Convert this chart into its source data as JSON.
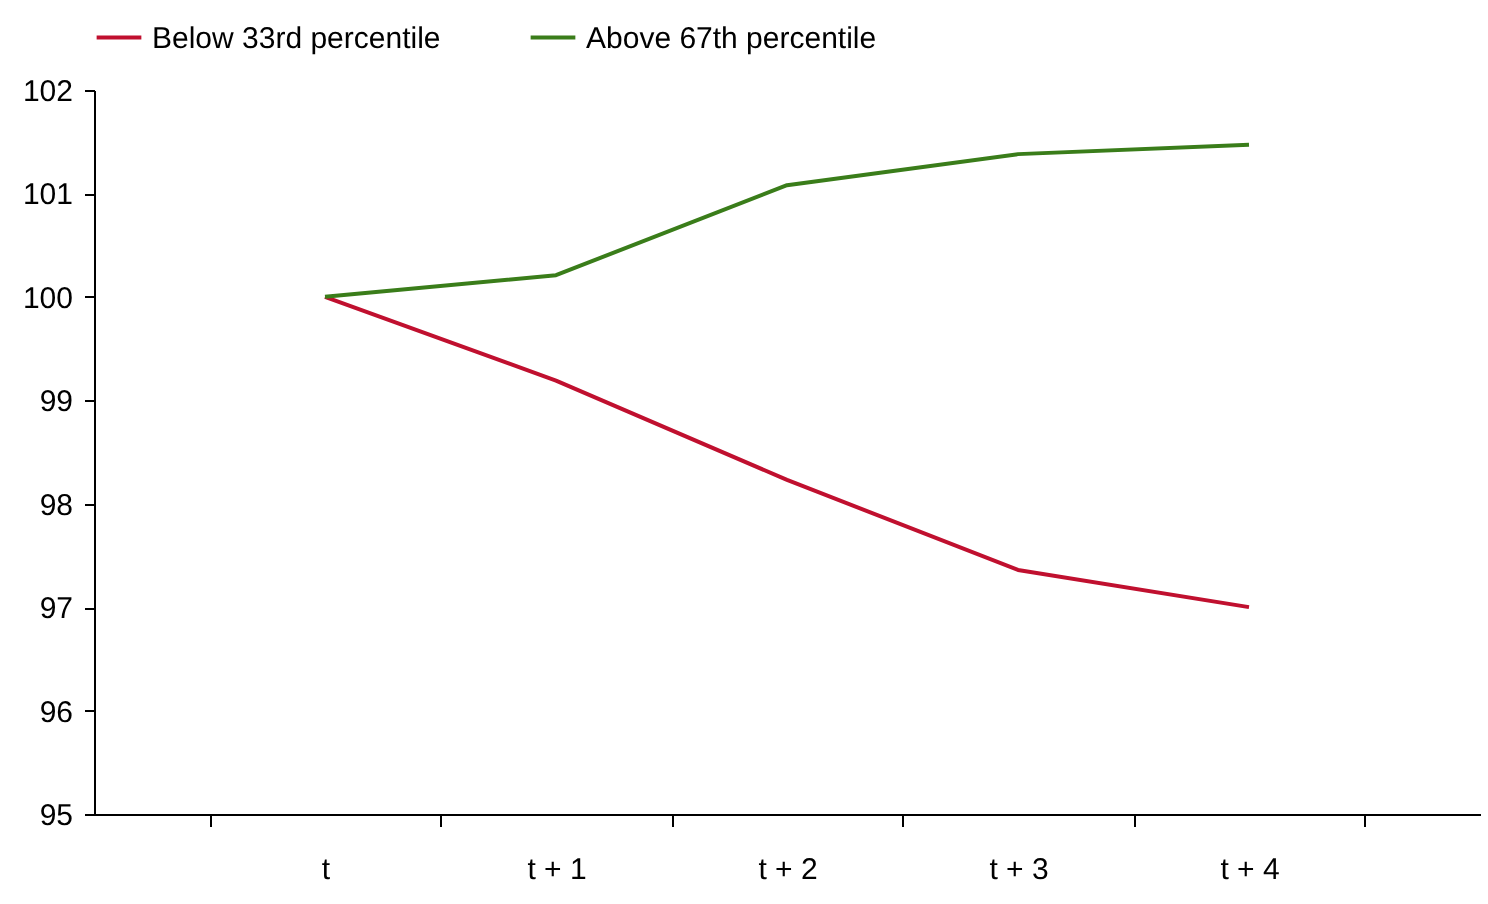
{
  "chart_data": {
    "type": "line",
    "categories": [
      "t",
      "t + 1",
      "t + 2",
      "t + 3",
      "t + 4"
    ],
    "series": [
      {
        "name": "Below 33rd percentile",
        "color": "#c0102f",
        "values": [
          100,
          99.19,
          98.23,
          97.36,
          97.0
        ]
      },
      {
        "name": "Above 67th percentile",
        "color": "#3a7d1a",
        "values": [
          100,
          100.21,
          101.08,
          101.38,
          101.47
        ]
      }
    ],
    "ylim": [
      95,
      102
    ],
    "yticks": [
      95,
      96,
      97,
      98,
      99,
      100,
      101,
      102
    ],
    "grid": false,
    "legend": "top",
    "marker": "none",
    "line_style": "solid"
  }
}
